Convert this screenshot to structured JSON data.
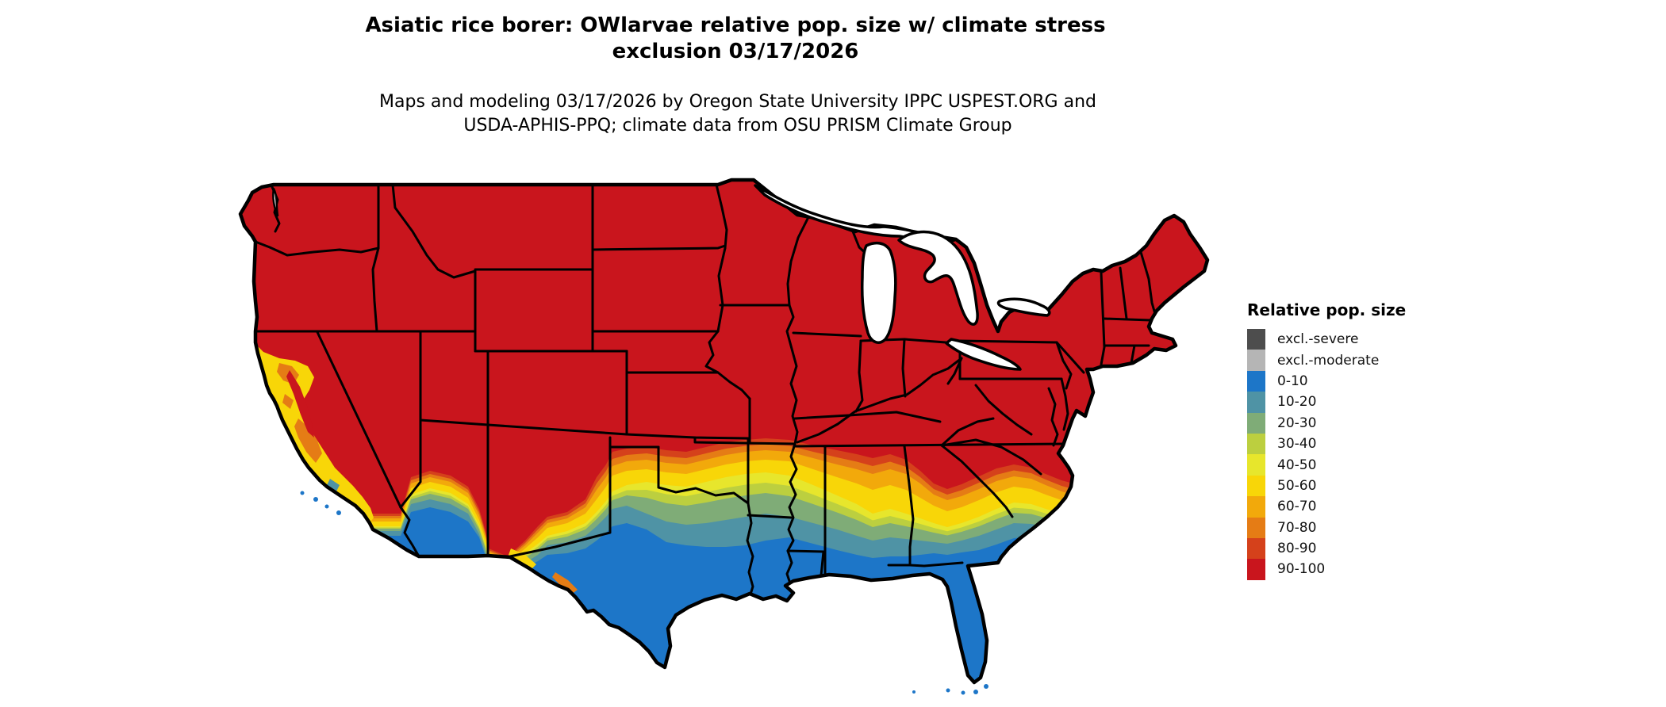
{
  "title": {
    "line1": "Asiatic rice borer: OWlarvae relative pop. size w/ climate stress",
    "line2": "exclusion 03/17/2026"
  },
  "subtitle": {
    "line1": "Maps and modeling 03/17/2026 by Oregon State University IPPC USPEST.ORG and",
    "line2": "USDA-APHIS-PPQ; climate data from OSU PRISM Climate Group"
  },
  "legend": {
    "title": "Relative pop. size",
    "items": [
      {
        "label": "excl.-severe",
        "color": "#4d4d4d"
      },
      {
        "label": "excl.-moderate",
        "color": "#b5b5b5"
      },
      {
        "label": "0-10",
        "color": "#1d76c8"
      },
      {
        "label": "10-20",
        "color": "#4f93a5"
      },
      {
        "label": "20-30",
        "color": "#7fac77"
      },
      {
        "label": "30-40",
        "color": "#bccf3f"
      },
      {
        "label": "40-50",
        "color": "#e7e62c"
      },
      {
        "label": "50-60",
        "color": "#f8d608"
      },
      {
        "label": "60-70",
        "color": "#f2a90b"
      },
      {
        "label": "70-80",
        "color": "#e57c15"
      },
      {
        "label": "80-90",
        "color": "#d5411b"
      },
      {
        "label": "90-100",
        "color": "#c9151d"
      }
    ]
  },
  "map": {
    "region": "Continental United States",
    "colors": {
      "background": "#ffffff",
      "water": "#ffffff",
      "state_border": "#000000",
      "outline": "#000000"
    }
  }
}
